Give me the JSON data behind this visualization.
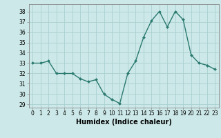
{
  "x": [
    0,
    1,
    2,
    3,
    4,
    5,
    6,
    7,
    8,
    9,
    10,
    11,
    12,
    13,
    14,
    15,
    16,
    17,
    18,
    19,
    20,
    21,
    22,
    23
  ],
  "y": [
    33,
    33,
    33.2,
    32,
    32,
    32,
    31.5,
    31.2,
    31.4,
    30,
    29.5,
    29.1,
    32,
    33.2,
    35.5,
    37.1,
    38,
    36.5,
    38,
    37.2,
    33.8,
    33,
    32.8,
    32.4
  ],
  "line_color": "#2a7a6f",
  "marker_color": "#2a7a6f",
  "bg_color": "#cce8e8",
  "grid_color": "#aad0d0",
  "xlabel": "Humidex (Indice chaleur)",
  "xlabel_fontsize": 7,
  "ylim": [
    28.7,
    38.7
  ],
  "yticks": [
    29,
    30,
    31,
    32,
    33,
    34,
    35,
    36,
    37,
    38
  ],
  "xticks": [
    0,
    1,
    2,
    3,
    4,
    5,
    6,
    7,
    8,
    9,
    10,
    11,
    12,
    13,
    14,
    15,
    16,
    17,
    18,
    19,
    20,
    21,
    22,
    23
  ],
  "tick_fontsize": 5.5,
  "linewidth": 1.0,
  "markersize": 2.0
}
